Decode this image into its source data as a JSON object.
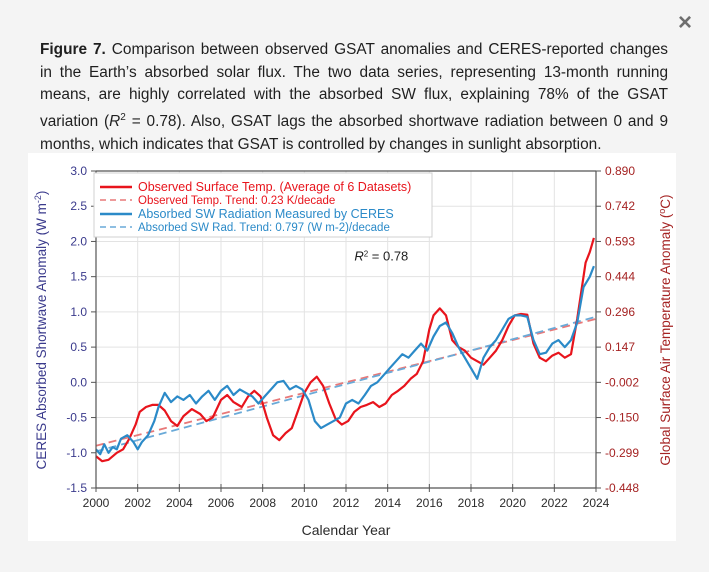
{
  "dialog": {
    "close_icon": "×"
  },
  "caption": {
    "label": "Figure 7.",
    "text": " Comparison between observed GSAT anomalies and CERES-reported changes in the Earth’s absorbed solar flux. The two data series, representing 13-month running means, are highly correlated with the absorbed SW flux, explaining 78% of the GSAT variation (",
    "r_symbol": "R",
    "r_sup": "2",
    "text_after": " = 0.78). Also, GSAT lags the absorbed shortwave radiation between 0 and 9 months, which indicates that GSAT is controlled by changes in sunlight absorption."
  },
  "colors": {
    "temp": "#e8141c",
    "temp_trend": "#e87878",
    "sw": "#2b8ac8",
    "sw_trend": "#6aaad8",
    "left_axis": "#3a3a8c",
    "right_axis": "#a52323"
  },
  "chart_data": {
    "type": "line",
    "title": "",
    "xlabel": "Calendar Year",
    "ylabel": "CERES Absorbed Shortwave Anomaly (W m-2)",
    "ylabel_parts": [
      "CERES Absorbed Shortwave Anomaly (W m",
      "-2",
      ")"
    ],
    "y2label": "Global Surface Air Temperature Anomaly (°C)",
    "y2label_parts": [
      "Global Surface Air Temperature Anomaly (",
      "o",
      "C)"
    ],
    "xlim": [
      2000,
      2024
    ],
    "ylim": [
      -1.5,
      3.0
    ],
    "y2lim": [
      -0.448,
      0.89
    ],
    "x_ticks": [
      "2000",
      "2002",
      "2004",
      "2006",
      "2008",
      "2010",
      "2012",
      "2014",
      "2016",
      "2018",
      "2020",
      "2022",
      "2024"
    ],
    "y_ticks": [
      "3.0",
      "2.5",
      "2.0",
      "1.5",
      "1.0",
      "0.5",
      "0.0",
      "-0.5",
      "-1.0",
      "-1.5"
    ],
    "y2_ticks": [
      "0.890",
      "0.742",
      "0.593",
      "0.444",
      "0.296",
      "0.147",
      "-0.002",
      "-0.150",
      "-0.299",
      "-0.448"
    ],
    "grid": true,
    "legend_position": "top-left",
    "annotation": {
      "text_r": "R",
      "text_sup": "2",
      "text_value": " = 0.78",
      "x": 2012.4,
      "y": 1.73
    },
    "series": [
      {
        "name": "Observed Surface Temp. (Average of 6 Datasets)",
        "style": "solid",
        "color_key": "temp",
        "axis": "left-equivalent",
        "x": [
          2000.0,
          2000.3,
          2000.6,
          2001.0,
          2001.3,
          2001.6,
          2001.9,
          2002.1,
          2002.4,
          2002.7,
          2003.0,
          2003.3,
          2003.6,
          2003.9,
          2004.2,
          2004.6,
          2005.0,
          2005.3,
          2005.6,
          2006.0,
          2006.3,
          2006.6,
          2007.0,
          2007.3,
          2007.6,
          2007.9,
          2008.2,
          2008.5,
          2008.8,
          2009.1,
          2009.4,
          2009.7,
          2010.0,
          2010.3,
          2010.6,
          2010.9,
          2011.2,
          2011.5,
          2011.8,
          2012.1,
          2012.4,
          2012.7,
          2013.0,
          2013.3,
          2013.6,
          2013.9,
          2014.2,
          2014.5,
          2014.8,
          2015.1,
          2015.4,
          2015.7,
          2016.0,
          2016.2,
          2016.5,
          2016.8,
          2017.1,
          2017.4,
          2017.7,
          2018.0,
          2018.3,
          2018.6,
          2018.9,
          2019.2,
          2019.5,
          2019.8,
          2020.1,
          2020.4,
          2020.7,
          2021.0,
          2021.3,
          2021.6,
          2021.9,
          2022.2,
          2022.5,
          2022.8,
          2023.1,
          2023.3,
          2023.5,
          2023.7,
          2023.9
        ],
        "values": [
          -1.05,
          -1.12,
          -1.1,
          -1.0,
          -0.95,
          -0.8,
          -0.6,
          -0.42,
          -0.35,
          -0.32,
          -0.32,
          -0.4,
          -0.55,
          -0.62,
          -0.48,
          -0.38,
          -0.45,
          -0.55,
          -0.5,
          -0.25,
          -0.18,
          -0.28,
          -0.35,
          -0.2,
          -0.12,
          -0.2,
          -0.5,
          -0.75,
          -0.82,
          -0.72,
          -0.65,
          -0.4,
          -0.15,
          0.0,
          0.08,
          -0.05,
          -0.3,
          -0.52,
          -0.6,
          -0.55,
          -0.42,
          -0.35,
          -0.32,
          -0.28,
          -0.35,
          -0.3,
          -0.18,
          -0.12,
          -0.05,
          0.05,
          0.12,
          0.3,
          0.75,
          0.95,
          1.05,
          0.95,
          0.6,
          0.5,
          0.45,
          0.35,
          0.3,
          0.25,
          0.35,
          0.45,
          0.6,
          0.8,
          0.95,
          0.97,
          0.96,
          0.55,
          0.35,
          0.3,
          0.38,
          0.42,
          0.35,
          0.4,
          0.9,
          1.3,
          1.7,
          1.85,
          2.05
        ]
      },
      {
        "name": "Observed Temp. Trend: 0.23 K/decade",
        "style": "dashed",
        "color_key": "temp_trend",
        "x": [
          2000,
          2024
        ],
        "values": [
          -0.9,
          0.9
        ]
      },
      {
        "name": "Absorbed SW Radiation Measured by CERES",
        "style": "solid",
        "color_key": "sw",
        "x": [
          2000.0,
          2000.2,
          2000.4,
          2000.6,
          2000.8,
          2001.0,
          2001.2,
          2001.5,
          2001.8,
          2002.0,
          2002.2,
          2002.5,
          2002.8,
          2003.0,
          2003.3,
          2003.6,
          2003.9,
          2004.2,
          2004.5,
          2004.8,
          2005.1,
          2005.4,
          2005.7,
          2006.0,
          2006.3,
          2006.6,
          2006.9,
          2007.2,
          2007.5,
          2007.8,
          2008.1,
          2008.4,
          2008.7,
          2009.0,
          2009.3,
          2009.6,
          2009.9,
          2010.2,
          2010.5,
          2010.8,
          2011.1,
          2011.4,
          2011.7,
          2012.0,
          2012.3,
          2012.6,
          2012.9,
          2013.2,
          2013.5,
          2013.8,
          2014.1,
          2014.4,
          2014.7,
          2015.0,
          2015.3,
          2015.6,
          2015.9,
          2016.2,
          2016.5,
          2016.8,
          2017.1,
          2017.4,
          2017.7,
          2018.0,
          2018.3,
          2018.6,
          2018.9,
          2019.2,
          2019.5,
          2019.8,
          2020.1,
          2020.4,
          2020.7,
          2021.0,
          2021.3,
          2021.6,
          2021.9,
          2022.2,
          2022.5,
          2022.8,
          2023.1,
          2023.4,
          2023.7,
          2023.9
        ],
        "values": [
          -0.95,
          -1.02,
          -0.88,
          -1.0,
          -0.92,
          -0.95,
          -0.8,
          -0.75,
          -0.85,
          -0.95,
          -0.85,
          -0.75,
          -0.55,
          -0.35,
          -0.15,
          -0.28,
          -0.2,
          -0.25,
          -0.18,
          -0.3,
          -0.2,
          -0.12,
          -0.25,
          -0.12,
          -0.05,
          -0.18,
          -0.1,
          -0.15,
          -0.2,
          -0.3,
          -0.2,
          -0.1,
          0.0,
          0.02,
          -0.1,
          -0.05,
          -0.1,
          -0.25,
          -0.55,
          -0.65,
          -0.6,
          -0.55,
          -0.5,
          -0.3,
          -0.25,
          -0.3,
          -0.18,
          -0.05,
          0.0,
          0.1,
          0.2,
          0.3,
          0.4,
          0.35,
          0.45,
          0.55,
          0.45,
          0.65,
          0.8,
          0.85,
          0.7,
          0.5,
          0.35,
          0.2,
          0.05,
          0.35,
          0.5,
          0.6,
          0.75,
          0.9,
          0.95,
          0.95,
          0.93,
          0.6,
          0.4,
          0.42,
          0.55,
          0.6,
          0.5,
          0.6,
          0.85,
          1.35,
          1.5,
          1.65
        ]
      },
      {
        "name": "Absorbed SW Rad. Trend: 0.797 (W m-2)/decade",
        "style": "dashed",
        "color_key": "sw_trend",
        "x": [
          2000,
          2024
        ],
        "values": [
          -0.98,
          0.93
        ]
      }
    ]
  }
}
